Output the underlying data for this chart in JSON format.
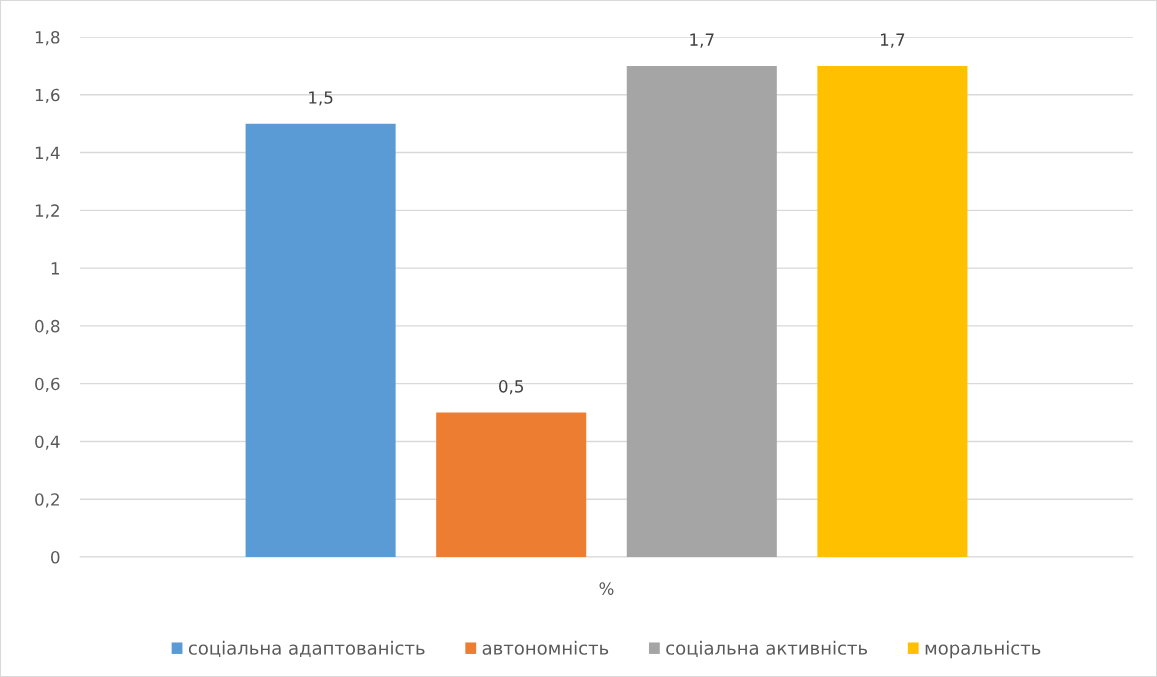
{
  "chart_data": {
    "type": "bar",
    "categories": [
      "%"
    ],
    "series": [
      {
        "name": "соціальна адаптованість",
        "color": "#5b9bd5",
        "values": [
          1.5
        ],
        "value_labels": [
          "1,5"
        ]
      },
      {
        "name": "автономність",
        "color": "#ed7d31",
        "values": [
          0.5
        ],
        "value_labels": [
          "0,5"
        ]
      },
      {
        "name": "соціальна активність",
        "color": "#a5a5a5",
        "values": [
          1.7
        ],
        "value_labels": [
          "1,7"
        ]
      },
      {
        "name": "моральність",
        "color": "#ffc000",
        "values": [
          1.7
        ],
        "value_labels": [
          "1,7"
        ]
      }
    ],
    "ylim": [
      0,
      1.8
    ],
    "yticks": [
      0,
      {
        "value": 0.2,
        "label": "0,2"
      },
      {
        "value": 0.4,
        "label": "0,4"
      },
      {
        "value": 0.6,
        "label": "0,6"
      },
      {
        "value": 0.8,
        "label": "0,8"
      },
      1,
      {
        "value": 1.2,
        "label": "1,2"
      },
      {
        "value": 1.4,
        "label": "1,4"
      },
      {
        "value": 1.6,
        "label": "1,6"
      },
      {
        "value": 1.8,
        "label": "1,8"
      }
    ],
    "grid": "y",
    "legend": "bottom"
  }
}
